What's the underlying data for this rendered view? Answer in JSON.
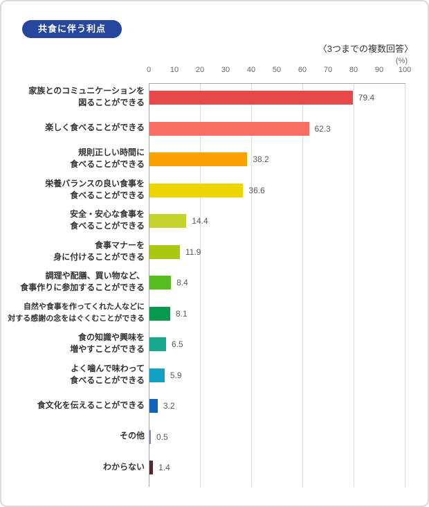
{
  "header": {
    "title_badge": "共食に伴う利点",
    "subtitle": "〈3つまでの複数回答〉"
  },
  "colors": {
    "badge_bg": "#26479d",
    "badge_text": "#ffffff",
    "axis_line": "#a6a6a6",
    "gridline": "#dcdcdc",
    "tick_text": "#666666",
    "category_text": "#333333",
    "value_text": "#595959"
  },
  "chart_data": {
    "type": "bar",
    "orientation": "horizontal",
    "title": "共食に伴う利点",
    "subtitle": "〈3つまでの複数回答〉",
    "unit_label": "(%)",
    "xlim": [
      0,
      100
    ],
    "x_ticks": [
      0,
      10,
      20,
      30,
      40,
      50,
      60,
      70,
      80,
      90,
      100
    ],
    "gridlines_at": [
      20,
      40,
      60,
      80,
      100
    ],
    "grid": true,
    "legend": false,
    "categories": [
      [
        "家族とのコミュニケーションを",
        "図ることができる"
      ],
      [
        "楽しく食べることができる"
      ],
      [
        "規則正しい時間に",
        "食べることができる"
      ],
      [
        "栄養バランスの良い食事を",
        "食べることができる"
      ],
      [
        "安全・安心な食事を",
        "食べることができる"
      ],
      [
        "食事マナーを",
        "身に付けることができる"
      ],
      [
        "調理や配膳、買い物など、",
        "食事作りに参加することができる"
      ],
      [
        "自然や食事を作ってくれた人などに",
        "対する感謝の念をはぐくむことができる"
      ],
      [
        "食の知識や興味を",
        "増やすことができる"
      ],
      [
        "よく噛んで味わって",
        "食べることができる"
      ],
      [
        "食文化を伝えることができる"
      ],
      [
        "その他"
      ],
      [
        "わからない"
      ]
    ],
    "values": [
      79.4,
      62.3,
      38.2,
      36.6,
      14.4,
      11.9,
      8.4,
      8.1,
      6.5,
      5.9,
      3.2,
      0.5,
      1.4
    ],
    "value_labels": [
      "79.4",
      "62.3",
      "38.2",
      "36.6",
      "14.4",
      "11.9",
      "8.4",
      "8.1",
      "6.5",
      "5.9",
      "3.2",
      "0.5",
      "1.4"
    ],
    "bar_colors": [
      "#e8484a",
      "#f76f62",
      "#f9a201",
      "#eed400",
      "#c4d32e",
      "#a9c80f",
      "#56bd22",
      "#089a4c",
      "#17a88e",
      "#12a2c3",
      "#1161be",
      "#8184d8",
      "#4f2b2e"
    ]
  }
}
